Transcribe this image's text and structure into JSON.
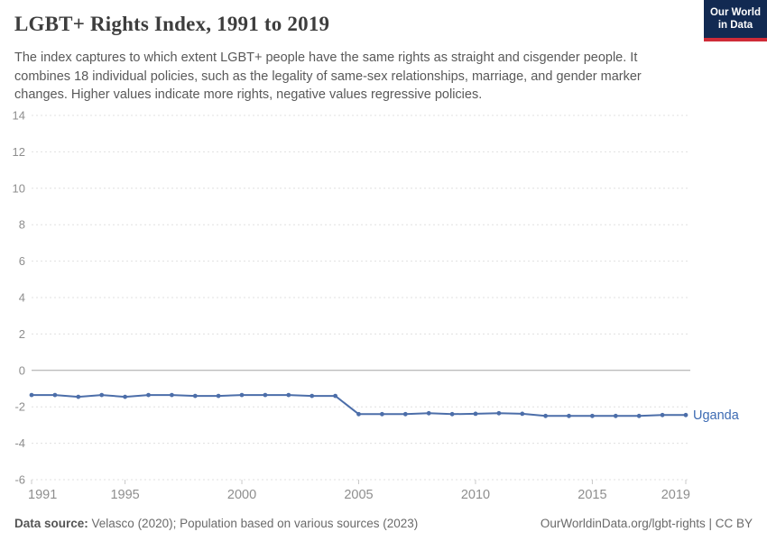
{
  "header": {
    "title": "LGBT+ Rights Index, 1991 to 2019",
    "subtitle": "The index captures to which extent LGBT+ people have the same rights as straight and cisgender people. It combines 18 individual policies, such as the legality of same-sex relationships, marriage, and gender marker changes. Higher values indicate more rights, negative values regressive policies."
  },
  "logo": {
    "line1": "Our World",
    "line2": "in Data",
    "bg_color": "#122a52",
    "accent_color": "#cf2b38"
  },
  "chart_data": {
    "type": "line",
    "title": "LGBT+ Rights Index, 1991 to 2019",
    "xlabel": "",
    "ylabel": "",
    "xlim": [
      1991,
      2019
    ],
    "ylim": [
      -6,
      14
    ],
    "x_ticks": [
      1991,
      1995,
      2000,
      2005,
      2010,
      2015,
      2019
    ],
    "y_ticks": [
      14,
      12,
      10,
      8,
      6,
      4,
      2,
      0,
      -2,
      -4,
      -6
    ],
    "grid": "horizontal-dashed",
    "zero_line": true,
    "legend_position": "end-of-line-label",
    "series": [
      {
        "name": "Uganda",
        "color": "#4c6ea9",
        "label_color": "#3d6bb3",
        "x": [
          1991,
          1992,
          1993,
          1994,
          1995,
          1996,
          1997,
          1998,
          1999,
          2000,
          2001,
          2002,
          2003,
          2004,
          2005,
          2006,
          2007,
          2008,
          2009,
          2010,
          2011,
          2012,
          2013,
          2014,
          2015,
          2016,
          2017,
          2018,
          2019
        ],
        "values": [
          -1.35,
          -1.35,
          -1.45,
          -1.35,
          -1.45,
          -1.35,
          -1.35,
          -1.4,
          -1.4,
          -1.35,
          -1.35,
          -1.35,
          -1.4,
          -1.4,
          -2.4,
          -2.4,
          -2.4,
          -2.35,
          -2.4,
          -2.38,
          -2.35,
          -2.38,
          -2.5,
          -2.5,
          -2.5,
          -2.5,
          -2.5,
          -2.45,
          -2.45
        ]
      }
    ],
    "colors": {
      "grid": "#e0e0e0",
      "zero_line": "#a5a5a5",
      "axis_text": "#8e8e8e",
      "tick_mark": "#c8c8c8"
    }
  },
  "footer": {
    "source_label": "Data source:",
    "source_text": " Velasco (2020); Population based on various sources (2023)",
    "credit": "OurWorldinData.org/lgbt-rights | CC BY"
  }
}
